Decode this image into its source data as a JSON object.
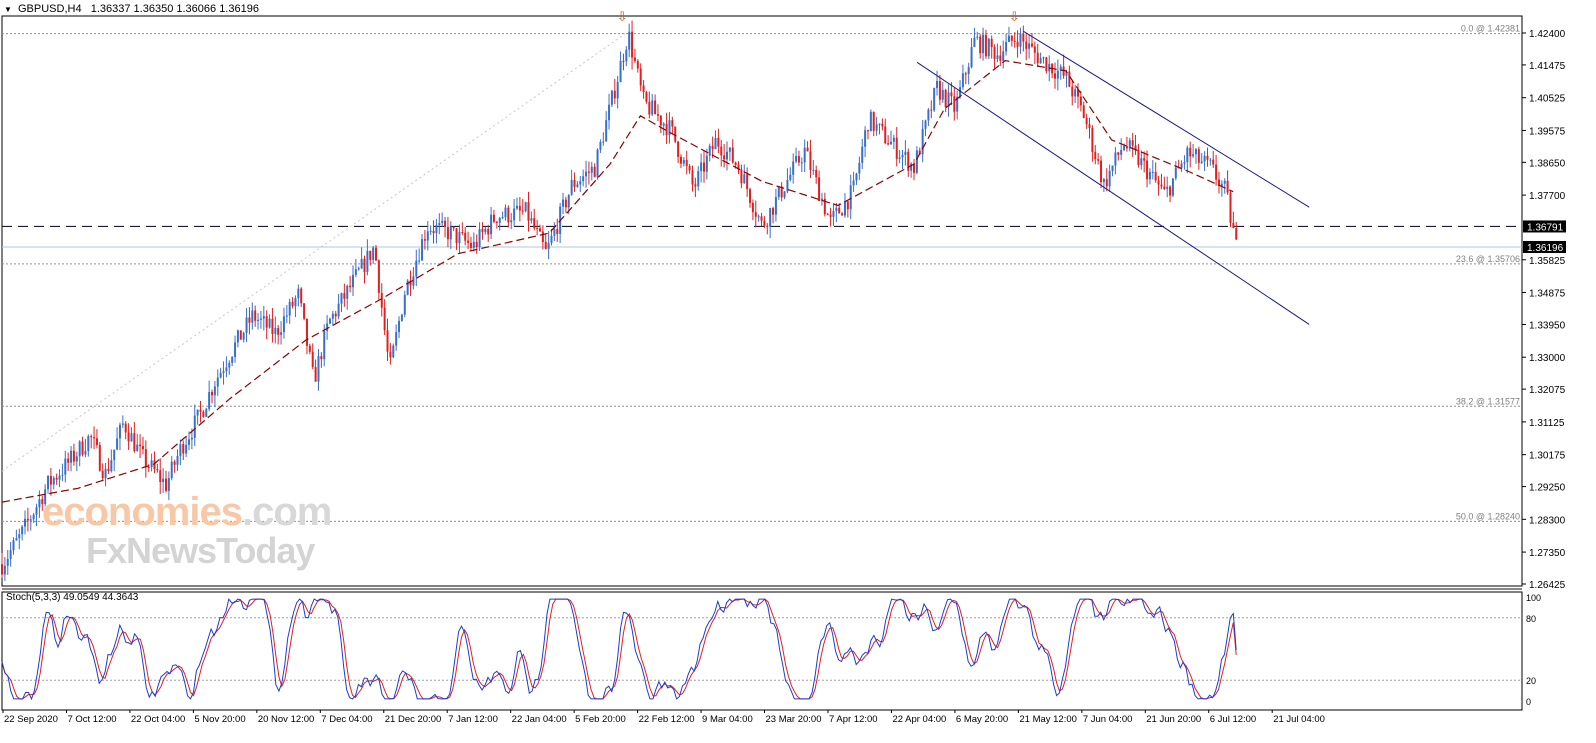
{
  "header": {
    "symbol": "GBPUSD,H4",
    "ohlc": "1.36337 1.36350 1.36066 1.36196"
  },
  "stoch_header": {
    "label": "Stoch(5,3,3) 49.0549 44.3643"
  },
  "watermark": {
    "line1_a": "economies",
    "line1_b": ".com",
    "line2": "FxNewsToday"
  },
  "colors": {
    "bull": "#3a6fc8",
    "bear": "#e02020",
    "ma": "#8b0000",
    "channel": "#1a1a8c",
    "stoch_main": "#1f3bd1",
    "stoch_signal": "#e02020",
    "arrow": "#e05020"
  },
  "chart_data": {
    "type": "candlestick",
    "symbol": "GBPUSD",
    "timeframe": "H4",
    "ylim": [
      1.26425,
      1.424
    ],
    "price_ticks": [
      "1.42400",
      "1.41475",
      "1.40525",
      "1.39575",
      "1.38650",
      "1.37700",
      "1.35825",
      "1.34875",
      "1.33950",
      "1.33000",
      "1.32075",
      "1.31125",
      "1.30175",
      "1.29250",
      "1.28300",
      "1.27350",
      "1.26425"
    ],
    "price_tags": [
      {
        "label": "1.36791",
        "price": 1.36791,
        "style": "dark"
      },
      {
        "label": "1.36196",
        "price": 1.36196,
        "style": "dark"
      }
    ],
    "horizontal_line": {
      "price": 1.36791,
      "style": "dashed"
    },
    "current_price_line": {
      "price": 1.36196
    },
    "fibonacci": [
      {
        "label": "0.0 @ 1.42381",
        "price": 1.42381
      },
      {
        "label": "23.6 @ 1.35706",
        "price": 1.35706
      },
      {
        "label": "38.2 @ 1.31577",
        "price": 1.31577
      },
      {
        "label": "50.0 @ 1.28240",
        "price": 1.2824
      }
    ],
    "time_labels": [
      "22 Sep 2020",
      "7 Oct 12:00",
      "22 Oct 04:00",
      "5 Nov 20:00",
      "20 Nov 12:00",
      "7 Dec 04:00",
      "21 Dec 20:00",
      "7 Jan 12:00",
      "22 Jan 04:00",
      "5 Feb 20:00",
      "22 Feb 12:00",
      "9 Mar 04:00",
      "23 Mar 20:00",
      "7 Apr 12:00",
      "22 Apr 04:00",
      "6 May 20:00",
      "21 May 12:00",
      "7 Jun 04:00",
      "21 Jun 20:00",
      "6 Jul 12:00",
      "21 Jul 04:00"
    ],
    "price_path": [
      [
        0,
        1.27
      ],
      [
        0.012,
        1.278
      ],
      [
        0.03,
        1.293
      ],
      [
        0.045,
        1.3
      ],
      [
        0.058,
        1.307
      ],
      [
        0.068,
        1.296
      ],
      [
        0.08,
        1.311
      ],
      [
        0.092,
        1.301
      ],
      [
        0.108,
        1.293
      ],
      [
        0.118,
        1.304
      ],
      [
        0.13,
        1.313
      ],
      [
        0.14,
        1.323
      ],
      [
        0.15,
        1.331
      ],
      [
        0.165,
        1.342
      ],
      [
        0.18,
        1.337
      ],
      [
        0.195,
        1.348
      ],
      [
        0.205,
        1.323
      ],
      [
        0.215,
        1.34
      ],
      [
        0.23,
        1.351
      ],
      [
        0.245,
        1.362
      ],
      [
        0.255,
        1.326
      ],
      [
        0.265,
        1.349
      ],
      [
        0.28,
        1.368
      ],
      [
        0.295,
        1.366
      ],
      [
        0.31,
        1.362
      ],
      [
        0.325,
        1.371
      ],
      [
        0.345,
        1.372
      ],
      [
        0.358,
        1.36
      ],
      [
        0.375,
        1.38
      ],
      [
        0.39,
        1.385
      ],
      [
        0.405,
        1.411
      ],
      [
        0.412,
        1.424
      ],
      [
        0.422,
        1.404
      ],
      [
        0.44,
        1.396
      ],
      [
        0.455,
        1.379
      ],
      [
        0.47,
        1.393
      ],
      [
        0.485,
        1.385
      ],
      [
        0.5,
        1.368
      ],
      [
        0.515,
        1.38
      ],
      [
        0.528,
        1.39
      ],
      [
        0.545,
        1.369
      ],
      [
        0.56,
        1.378
      ],
      [
        0.57,
        1.399
      ],
      [
        0.585,
        1.392
      ],
      [
        0.6,
        1.385
      ],
      [
        0.615,
        1.408
      ],
      [
        0.627,
        1.402
      ],
      [
        0.64,
        1.422
      ],
      [
        0.655,
        1.418
      ],
      [
        0.668,
        1.423
      ],
      [
        0.682,
        1.417
      ],
      [
        0.7,
        1.411
      ],
      [
        0.712,
        1.4
      ],
      [
        0.725,
        1.38
      ],
      [
        0.738,
        1.392
      ],
      [
        0.752,
        1.385
      ],
      [
        0.765,
        1.377
      ],
      [
        0.78,
        1.389
      ],
      [
        0.795,
        1.385
      ],
      [
        0.805,
        1.378
      ],
      [
        0.812,
        1.362
      ]
    ],
    "ma_path": [
      [
        0,
        1.288
      ],
      [
        0.05,
        1.292
      ],
      [
        0.1,
        1.299
      ],
      [
        0.15,
        1.318
      ],
      [
        0.2,
        1.335
      ],
      [
        0.25,
        1.347
      ],
      [
        0.3,
        1.36
      ],
      [
        0.36,
        1.366
      ],
      [
        0.4,
        1.386
      ],
      [
        0.42,
        1.4
      ],
      [
        0.44,
        1.395
      ],
      [
        0.5,
        1.381
      ],
      [
        0.55,
        1.374
      ],
      [
        0.6,
        1.386
      ],
      [
        0.62,
        1.402
      ],
      [
        0.66,
        1.416
      ],
      [
        0.7,
        1.413
      ],
      [
        0.73,
        1.393
      ],
      [
        0.78,
        1.384
      ],
      [
        0.81,
        1.378
      ]
    ],
    "channel": {
      "upper": [
        [
          0.672,
          1.4245
        ],
        [
          0.86,
          1.3735
        ]
      ],
      "lower": [
        [
          0.602,
          1.4155
        ],
        [
          0.86,
          1.3395
        ]
      ]
    },
    "markers": [
      {
        "symbol": "⇩",
        "at": [
          0.408,
          1.4275
        ]
      },
      {
        "symbol": "⇩",
        "at": [
          0.666,
          1.4275
        ]
      }
    ],
    "stochastic": {
      "label": "Stoch(5,3,3)",
      "main": 49.0549,
      "signal": 44.3643,
      "ylim": [
        0,
        100
      ],
      "levels": [
        20,
        80
      ],
      "ticks": [
        "100",
        "80",
        "20",
        "0"
      ]
    }
  }
}
